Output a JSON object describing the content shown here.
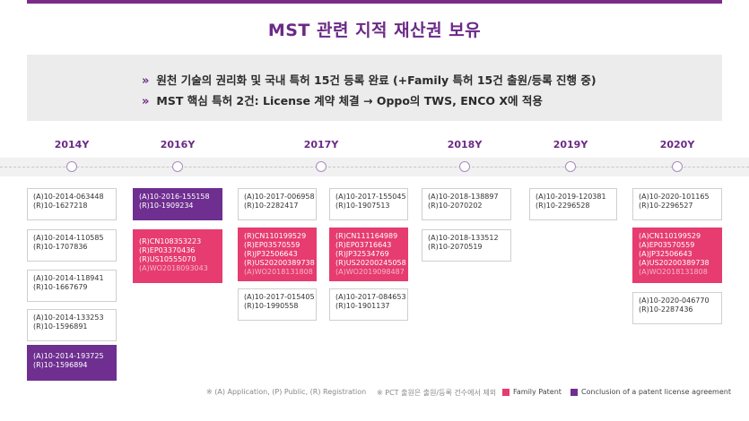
{
  "title": "MST 관련 지적 재산권 보유",
  "summary": {
    "chevron": "»",
    "line1": "원천 기술의 권리화 및 국내 특허 15건 등록 완료 (+Family 특허 15건 출원/등록 진행 중)",
    "line2": "MST 핵심 특허 2건: License 계약 체결 → Oppo의 TWS, ENCO X에 적용"
  },
  "years": [
    "2014Y",
    "2016Y",
    "2017Y",
    "2018Y",
    "2019Y",
    "2020Y"
  ],
  "colors": {
    "family": "#e63c70",
    "license": "#6e2f90",
    "accent": "#6b2a86"
  },
  "cards": {
    "y2014": [
      [
        "(A)10-2014-063448",
        "(R)10-1627218"
      ],
      [
        "(A)10-2014-110585",
        "(R)10-1707836"
      ],
      [
        "(A)10-2014-118941",
        "(R)10-1667679"
      ],
      [
        "(A)10-2014-133253",
        "(R)10-1596891"
      ],
      [
        "(A)10-2014-193725",
        "(R)10-1596894"
      ]
    ],
    "y2016": [
      [
        "(A)10-2016-155158",
        "(R)10-1909234"
      ],
      [
        "(R)CN108353223",
        "(R)EP03370436",
        "(R)US10555070",
        "(A)WO2018093043"
      ]
    ],
    "y2017a": [
      [
        "(A)10-2017-006958",
        "(R)10-2282417"
      ],
      [
        "(R)CN110199529",
        "(R)EP03570559",
        "(R)JP32506643",
        "(R)US20200389738",
        "(A)WO2018131808"
      ],
      [
        "(A)10-2017-015405",
        "(R)10-1990558"
      ]
    ],
    "y2017b": [
      [
        "(A)10-2017-155045",
        "(R)10-1907513"
      ],
      [
        "(R)CN111164989",
        "(R)EP03716643",
        "(R)JP32534769",
        "(R)US20200245058",
        "(A)WO2019098487"
      ],
      [
        "(A)10-2017-084653",
        "(R)10-1901137"
      ]
    ],
    "y2018": [
      [
        "(A)10-2018-138897",
        "(R)10-2070202"
      ],
      [
        "(A)10-2018-133512",
        "(R)10-2070519"
      ]
    ],
    "y2019": [
      [
        "(A)10-2019-120381",
        "(R)10-2296528"
      ]
    ],
    "y2020": [
      [
        "(A)10-2020-101165",
        "(R)10-2296527"
      ],
      [
        "(A)CN110199529",
        "(A)EP03570559",
        "(A)JP32506643",
        "(A)US20200389738",
        "(A)WO2018131808"
      ],
      [
        "(A)10-2020-046770",
        "(R)10-2287436"
      ]
    ]
  },
  "footer": {
    "note1": "※ (A) Application, (P) Public, (R) Registration",
    "note2": "※ PCT 출원은 출원/등록 건수에서 제외",
    "legend_family": "Family Patent",
    "legend_license": "Conclusion of a patent license agreement"
  }
}
